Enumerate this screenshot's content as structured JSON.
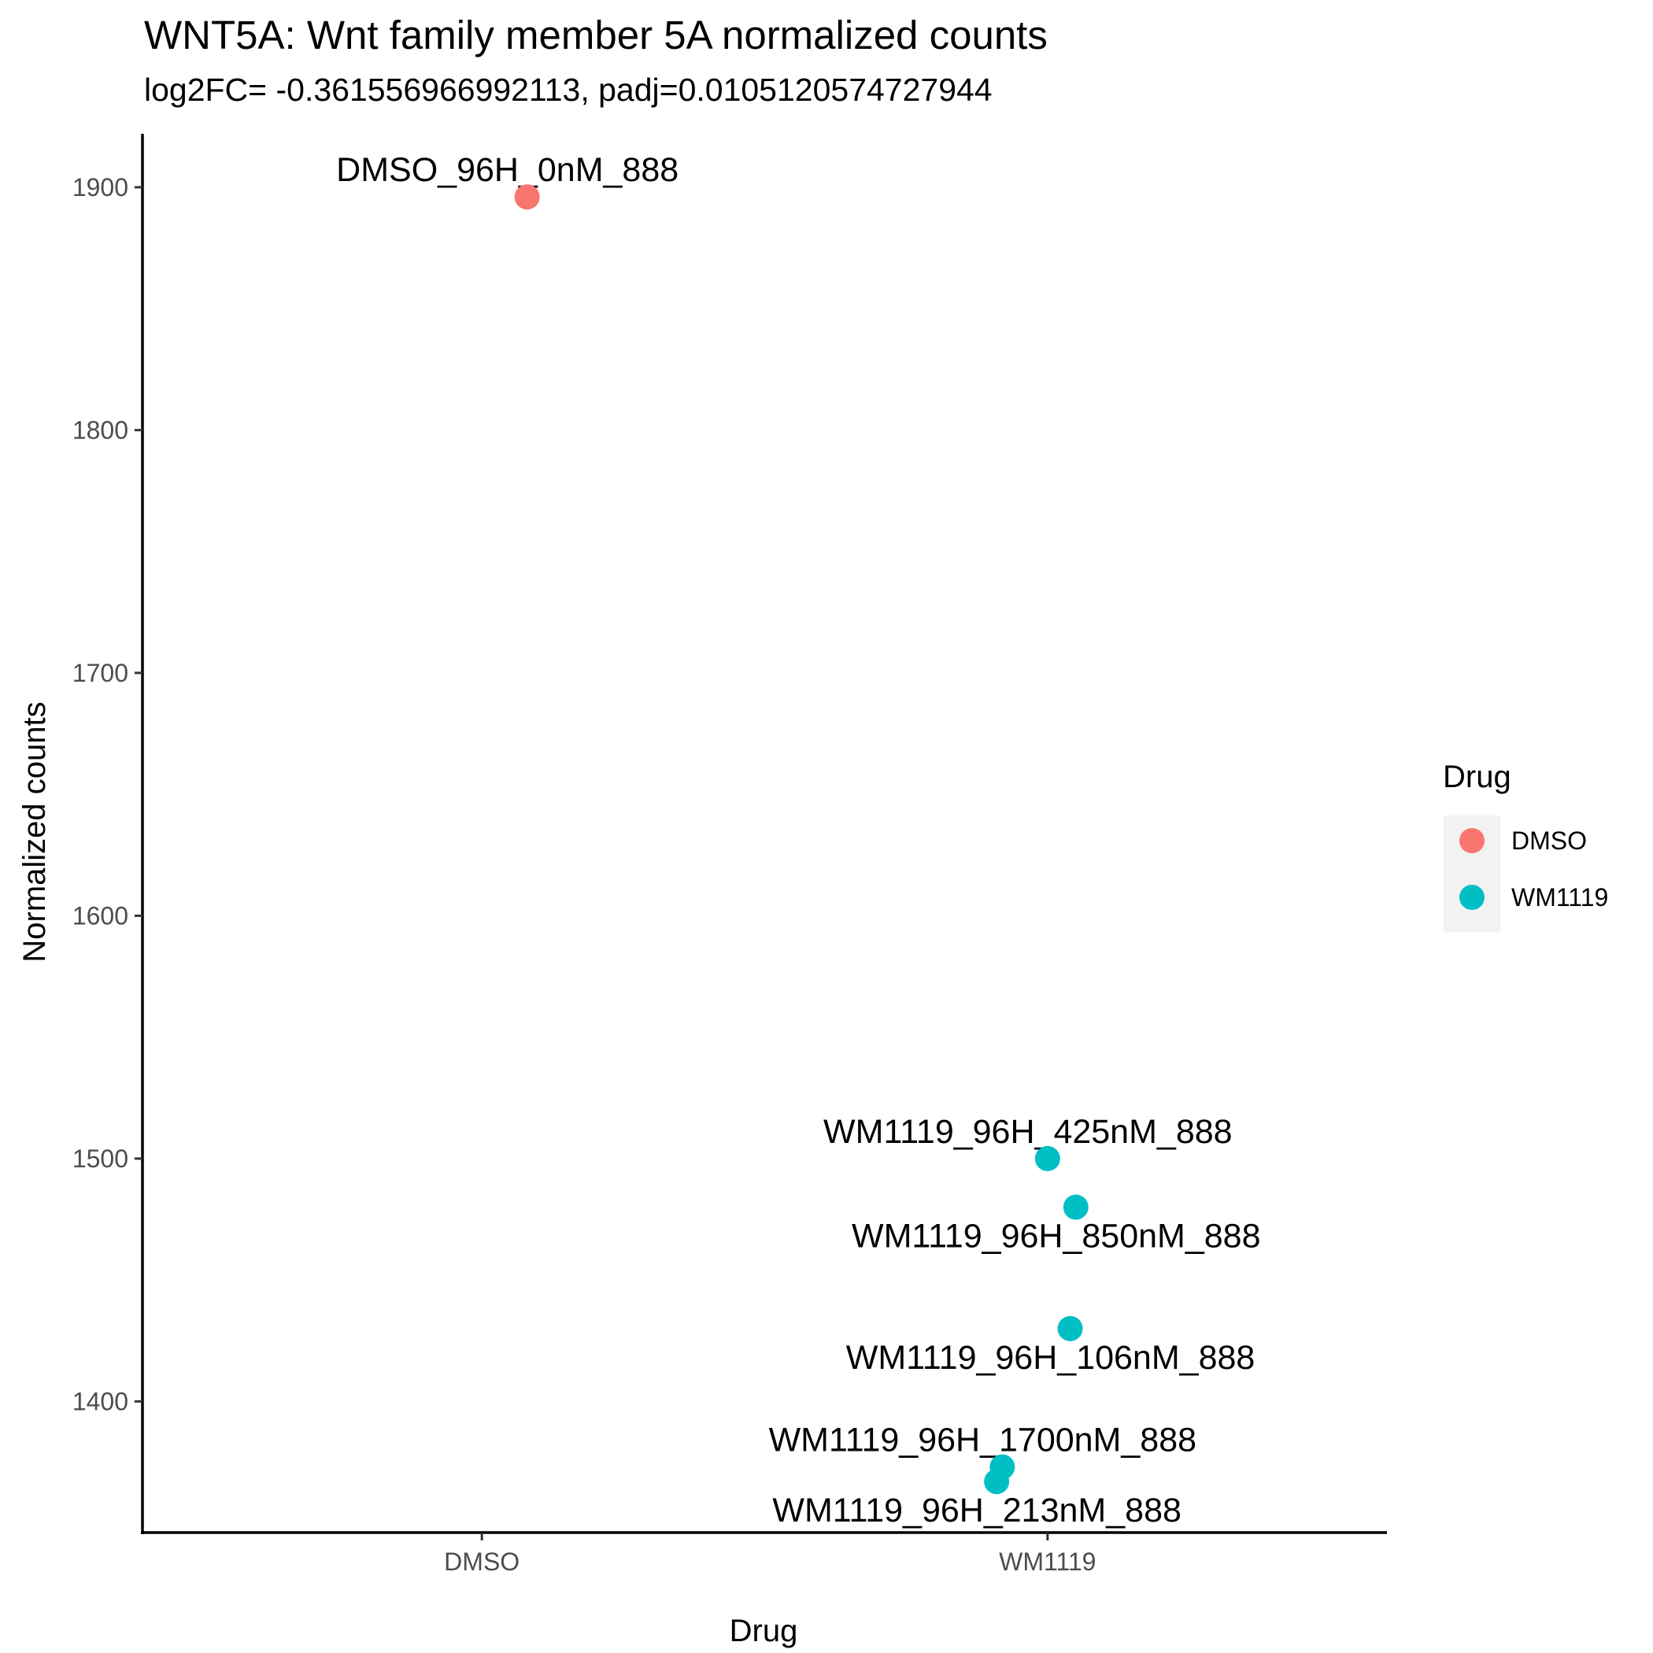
{
  "chart_data": {
    "type": "scatter",
    "title": "WNT5A: Wnt family member 5A normalized counts",
    "subtitle": "log2FC= -0.361556966992113, padj=0.0105120574727944",
    "xlabel": "Drug",
    "ylabel": "Normalized counts",
    "categories": [
      "DMSO",
      "WM1119"
    ],
    "y_ticks": [
      1400,
      1500,
      1600,
      1700,
      1800,
      1900
    ],
    "ylim": [
      1346,
      1922
    ],
    "grid": false,
    "legend": {
      "title": "Drug",
      "position": "right",
      "entries": [
        {
          "label": "DMSO",
          "color": "#F8766D"
        },
        {
          "label": "WM1119",
          "color": "#00BFC4"
        }
      ]
    },
    "points": [
      {
        "label": "DMSO_96H_0nM_888",
        "category": "DMSO",
        "x": 1.08,
        "y": 1896,
        "color": "#F8766D",
        "label_pos": "above"
      },
      {
        "label": "WM1119_96H_425nM_888",
        "category": "WM1119",
        "x": 2.0,
        "y": 1500,
        "color": "#00BFC4",
        "label_pos": "above"
      },
      {
        "label": "WM1119_96H_850nM_888",
        "category": "WM1119",
        "x": 2.05,
        "y": 1480,
        "color": "#00BFC4",
        "label_pos": "below"
      },
      {
        "label": "WM1119_96H_106nM_888",
        "category": "WM1119",
        "x": 2.04,
        "y": 1430,
        "color": "#00BFC4",
        "label_pos": "below"
      },
      {
        "label": "WM1119_96H_1700nM_888",
        "category": "WM1119",
        "x": 1.92,
        "y": 1373,
        "color": "#00BFC4",
        "label_pos": "above"
      },
      {
        "label": "WM1119_96H_213nM_888",
        "category": "WM1119",
        "x": 1.91,
        "y": 1367,
        "color": "#00BFC4",
        "label_pos": "below"
      }
    ]
  }
}
